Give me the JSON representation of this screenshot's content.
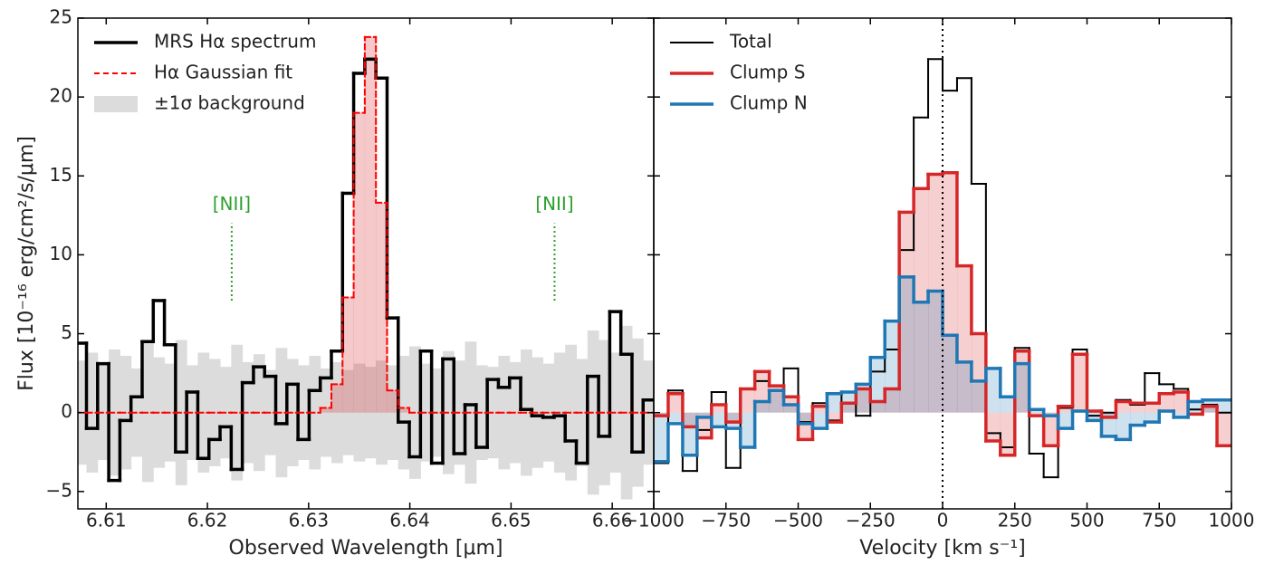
{
  "chart_data": [
    {
      "type": "step",
      "xlabel": "Observed Wavelength [μm]",
      "ylabel": "Flux [10⁻¹⁶ erg/cm²/s/μm]",
      "xlim": [
        6.6072,
        6.6641
      ],
      "ylim": [
        -6.1,
        25
      ],
      "xticks": [
        6.61,
        6.62,
        6.63,
        6.64,
        6.65,
        6.66
      ],
      "yticks": [
        {
          "value": -5,
          "label": "−5"
        },
        0,
        5,
        10,
        15,
        20,
        25
      ],
      "show_ytick_labels": true,
      "legend": "upper left",
      "x": [
        6.6075,
        6.6086,
        6.6097,
        6.6108,
        6.6119,
        6.613,
        6.6141,
        6.6152,
        6.6163,
        6.6174,
        6.6185,
        6.6196,
        6.6207,
        6.6218,
        6.6229,
        6.624,
        6.6251,
        6.6262,
        6.6273,
        6.6284,
        6.6295,
        6.6306,
        6.6317,
        6.6328,
        6.6339,
        6.635,
        6.6361,
        6.6372,
        6.6383,
        6.6394,
        6.6405,
        6.6416,
        6.6427,
        6.6438,
        6.6449,
        6.646,
        6.6471,
        6.6482,
        6.6493,
        6.6504,
        6.6515,
        6.6526,
        6.6537,
        6.6548,
        6.6559,
        6.657,
        6.6581,
        6.6592,
        6.6603,
        6.6614,
        6.6625,
        6.6636
      ],
      "series": [
        {
          "name": "MRS Hα spectrum",
          "color": "#000000",
          "width": 3.5,
          "style": "solid",
          "fill": false,
          "values": [
            4.4,
            -1.0,
            3.1,
            -4.3,
            -0.5,
            1.0,
            4.5,
            7.1,
            4.3,
            -2.5,
            1.3,
            -2.9,
            -1.7,
            -0.9,
            -3.6,
            1.9,
            2.9,
            2.3,
            -0.7,
            1.8,
            -1.7,
            1.4,
            2.2,
            3.9,
            13.9,
            21.5,
            22.4,
            21.2,
            6.0,
            -0.6,
            -2.8,
            3.9,
            -3.2,
            3.4,
            -2.6,
            0.5,
            -2.2,
            2.1,
            1.6,
            2.2,
            0.2,
            -0.2,
            -0.3,
            -0.2,
            -1.8,
            -3.2,
            2.3,
            -1.5,
            6.4,
            3.7,
            -2.5,
            0.8
          ]
        },
        {
          "name": "Hα Gaussian fit",
          "color": "#ff0000",
          "width": 2,
          "style": "dashed",
          "fill": true,
          "fill_color": "rgba(214,39,40,0.25)",
          "values": [
            0,
            0,
            0,
            0,
            0,
            0,
            0,
            0,
            0,
            0,
            0,
            0,
            0,
            0,
            0,
            0,
            0,
            0,
            0,
            0,
            0,
            0,
            0.3,
            1.8,
            7.3,
            19.0,
            23.8,
            13.3,
            1.4,
            0.3,
            0,
            0,
            0,
            0,
            0,
            0,
            0,
            0,
            0,
            0,
            0,
            0,
            0,
            0,
            0,
            0,
            0,
            0,
            0,
            0,
            0,
            0
          ]
        },
        {
          "name": "±1σ background",
          "color": "#dcdcdc",
          "style": "band",
          "values": [
            3.3,
            3.8,
            3.0,
            4.0,
            3.6,
            2.8,
            4.4,
            3.5,
            3.1,
            4.6,
            3.0,
            3.8,
            3.4,
            2.9,
            4.3,
            3.2,
            3.7,
            2.7,
            4.1,
            3.4,
            3.0,
            3.6,
            2.8,
            3.2,
            2.7,
            3.1,
            2.9,
            3.3,
            3.0,
            3.6,
            4.2,
            3.1,
            2.8,
            3.9,
            3.3,
            4.5,
            3.0,
            2.9,
            3.6,
            3.2,
            4.0,
            3.5,
            3.1,
            3.8,
            4.3,
            3.4,
            5.2,
            4.6,
            3.8,
            5.5,
            4.7,
            3.3
          ]
        }
      ],
      "annotations": [
        {
          "text": "[NII]",
          "x": 6.6224,
          "y": [
            7.1,
            12.0
          ],
          "color": "#2ca02c"
        },
        {
          "text": "[NII]",
          "x": 6.6543,
          "y": [
            7.1,
            12.0
          ],
          "color": "#2ca02c"
        }
      ]
    },
    {
      "type": "step",
      "xlabel": "Velocity [km s⁻¹]",
      "xlim": [
        -1000,
        1000
      ],
      "ylim": [
        -6.1,
        25
      ],
      "xticks": [
        {
          "value": -1000,
          "label": "−1000"
        },
        {
          "value": -750,
          "label": "−750"
        },
        {
          "value": -500,
          "label": "−500"
        },
        {
          "value": -250,
          "label": "−250"
        },
        0,
        250,
        500,
        750,
        1000
      ],
      "yticks": [
        -5,
        0,
        5,
        10,
        15,
        20,
        25
      ],
      "show_ytick_labels": false,
      "legend": "upper left",
      "vline": 0,
      "x": [
        -975,
        -925,
        -875,
        -825,
        -775,
        -725,
        -675,
        -625,
        -575,
        -525,
        -475,
        -425,
        -375,
        -325,
        -275,
        -225,
        -175,
        -125,
        -75,
        -25,
        25,
        75,
        125,
        175,
        225,
        275,
        325,
        375,
        425,
        475,
        525,
        575,
        625,
        675,
        725,
        775,
        825,
        875,
        925,
        975
      ],
      "series": [
        {
          "name": "Total",
          "color": "#000000",
          "width": 2,
          "style": "solid",
          "fill": false,
          "values": [
            -3.2,
            1.4,
            -3.7,
            -1.1,
            1.3,
            -3.5,
            1.5,
            2.0,
            1.7,
            2.8,
            -0.6,
            0.6,
            -0.5,
            1.3,
            -0.2,
            2.6,
            4.0,
            10.3,
            18.7,
            22.4,
            20.4,
            21.2,
            14.5,
            -1.3,
            -2.2,
            4.1,
            -2.6,
            -4.1,
            0.3,
            4.0,
            -0.2,
            0.0,
            0.8,
            0.5,
            2.5,
            1.8,
            1.5,
            0.2,
            0.5,
            0.0
          ]
        },
        {
          "name": "Clump S",
          "color": "#d62728",
          "width": 3.5,
          "style": "solid",
          "fill": true,
          "fill_color": "rgba(214,39,40,0.22)",
          "values": [
            -0.2,
            1.2,
            -0.9,
            -1.6,
            0.5,
            -0.6,
            1.5,
            2.6,
            1.7,
            1.0,
            -1.7,
            0.4,
            -0.6,
            0.6,
            1.5,
            0.7,
            1.5,
            12.7,
            14.2,
            15.1,
            15.2,
            9.3,
            5.0,
            -1.8,
            -2.7,
            3.9,
            -0.2,
            -2.1,
            0.4,
            3.7,
            0.1,
            -0.3,
            0.7,
            0.6,
            0.6,
            1.2,
            1.3,
            -0.1,
            0.4,
            -2.1
          ]
        },
        {
          "name": "Clump N",
          "color": "#1f77b4",
          "width": 3.5,
          "style": "solid",
          "fill": true,
          "fill_color": "rgba(31,119,180,0.22)",
          "values": [
            -3.1,
            -0.7,
            -2.7,
            -0.3,
            -0.9,
            -1.0,
            -2.2,
            0.7,
            1.4,
            0.5,
            -0.7,
            -1.0,
            1.2,
            1.3,
            1.8,
            3.5,
            5.8,
            8.6,
            7.0,
            7.7,
            4.9,
            3.2,
            2.0,
            2.8,
            1.0,
            3.1,
            0.2,
            -0.2,
            -1.0,
            0.1,
            -0.5,
            -1.5,
            -1.7,
            -0.8,
            -0.6,
            0.1,
            -0.3,
            0.7,
            0.8,
            0.8
          ]
        }
      ]
    }
  ]
}
